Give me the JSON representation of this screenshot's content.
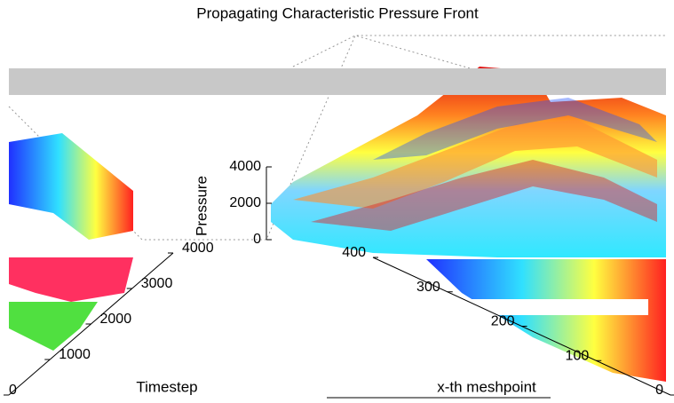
{
  "chart_data": {
    "type": "surface",
    "title": "Propagating Characteristic Pressure Front",
    "x_label": "Timestep",
    "y_label": "x-th meshpoint",
    "z_label": "Pressure",
    "xlim": [
      0,
      4000
    ],
    "xticks": [
      0,
      1000,
      2000,
      3000,
      4000
    ],
    "ylim": [
      0,
      400
    ],
    "yticks": [
      0,
      100,
      200,
      300,
      400
    ],
    "zlim": [
      0,
      4000
    ],
    "zticks": [
      0,
      2000,
      4000
    ],
    "colormap": "jet"
  }
}
